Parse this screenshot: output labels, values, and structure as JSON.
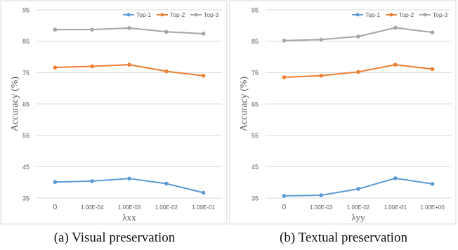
{
  "chart_data": [
    {
      "type": "line",
      "caption": "(a) Visual preservation",
      "xlabel": "λxx",
      "ylabel": "Accuracy (%)",
      "categories": [
        "0",
        "1.00E-04",
        "1.00E-03",
        "1.00E-02",
        "1.00E-01"
      ],
      "yticks": [
        "95",
        "85",
        "75",
        "65",
        "55",
        "45",
        "35"
      ],
      "ylim": [
        35,
        95
      ],
      "grid": true,
      "legend_position": "top-right",
      "series": [
        {
          "name": "Top-1",
          "color": "#5B9BD5",
          "values": [
            40.1,
            40.4,
            41.2,
            39.6,
            36.7
          ]
        },
        {
          "name": "Top-2",
          "color": "#ED7D31",
          "values": [
            76.6,
            77.0,
            77.5,
            75.4,
            74.0
          ]
        },
        {
          "name": "Top-3",
          "color": "#A5A5A5",
          "values": [
            88.7,
            88.7,
            89.2,
            88.0,
            87.4
          ]
        }
      ]
    },
    {
      "type": "line",
      "caption": "(b) Textual preservation",
      "xlabel": "λyy",
      "ylabel": "Accuracy (%)",
      "categories": [
        "0",
        "1.00E-03",
        "1.00E-02",
        "1.00E-01",
        "1.00E+00"
      ],
      "yticks": [
        "95",
        "85",
        "75",
        "65",
        "55",
        "45",
        "35"
      ],
      "ylim": [
        35,
        95
      ],
      "grid": true,
      "legend_position": "top-right",
      "series": [
        {
          "name": "Top-1",
          "color": "#5B9BD5",
          "values": [
            35.7,
            35.9,
            37.9,
            41.3,
            39.5
          ]
        },
        {
          "name": "Top-2",
          "color": "#ED7D31",
          "values": [
            73.5,
            74.0,
            75.2,
            77.5,
            76.1
          ]
        },
        {
          "name": "Top-3",
          "color": "#A5A5A5",
          "values": [
            85.2,
            85.5,
            86.5,
            89.3,
            87.8
          ]
        }
      ]
    }
  ]
}
